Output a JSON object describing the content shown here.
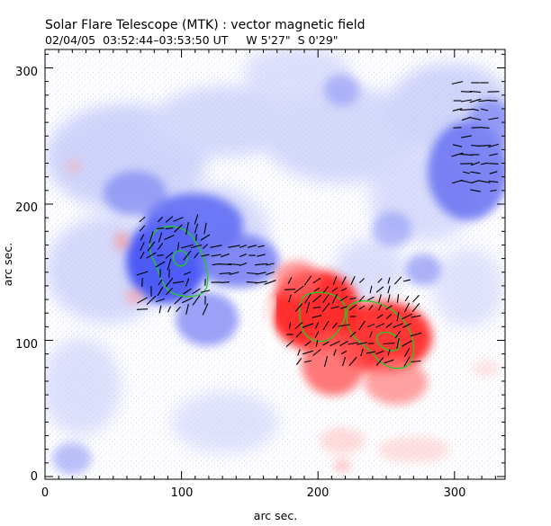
{
  "header": {
    "title": "Solar Flare Telescope (MTK) : vector magnetic field",
    "subtitle": "02/04/05  03:52:44–03:53:50 UT     W 5'27\"  S 0'29\""
  },
  "axes": {
    "xlabel": "arc sec.",
    "ylabel": "arc sec.",
    "xlim": [
      0,
      337
    ],
    "ylim": [
      -2,
      322
    ],
    "x_ticks": [
      "0",
      "100",
      "200",
      "300"
    ],
    "y_ticks": [
      "0",
      "100",
      "200",
      "300"
    ]
  },
  "colors": {
    "positive_polarity": "#ff2a2a",
    "negative_polarity": "#3340ff",
    "contour": "#22cc22",
    "vector": "#000000",
    "background": "#ffffff"
  }
}
